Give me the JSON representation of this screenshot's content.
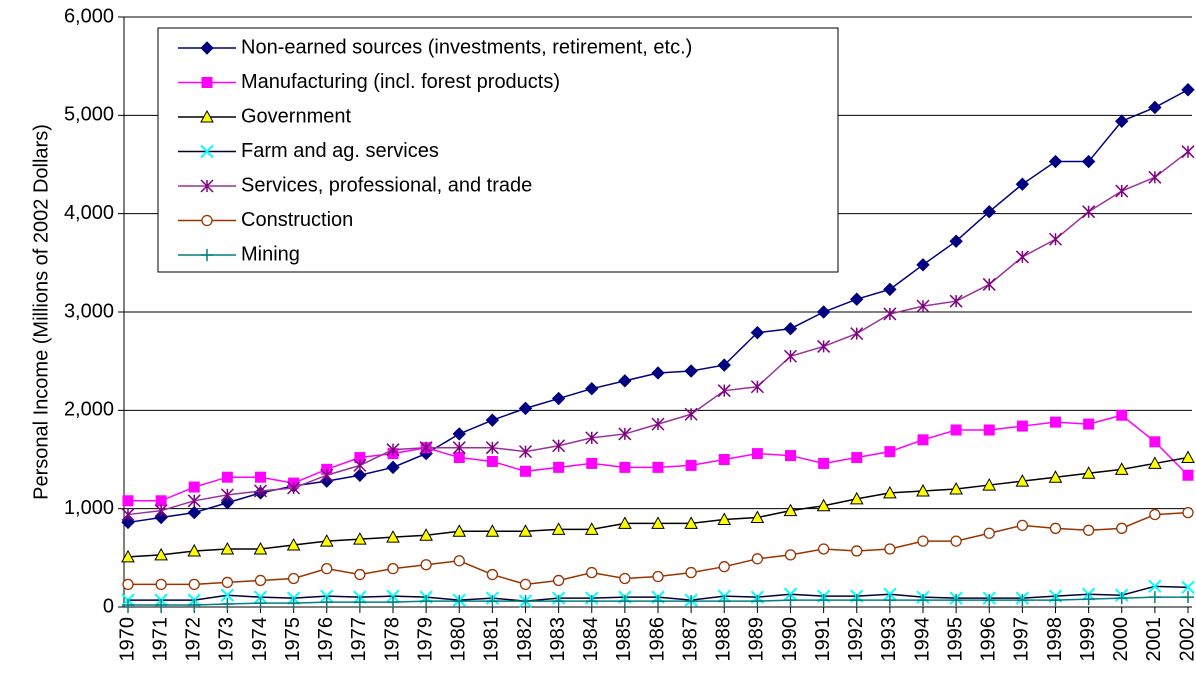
{
  "chart_data": {
    "type": "line",
    "y_label": "Personal Income (Millions of 2002 Dollars)",
    "categories": [
      "1970",
      "1971",
      "1972",
      "1973",
      "1974",
      "1975",
      "1976",
      "1977",
      "1978",
      "1979",
      "1980",
      "1981",
      "1982",
      "1983",
      "1984",
      "1985",
      "1986",
      "1987",
      "1988",
      "1989",
      "1990",
      "1991",
      "1992",
      "1993",
      "1994",
      "1995",
      "1996",
      "1997",
      "1998",
      "1999",
      "2000",
      "2001",
      "2002"
    ],
    "ylim": [
      0,
      6000
    ],
    "yticks": [
      0,
      {
        "value": 1000,
        "label": "1,000"
      },
      {
        "value": 2000,
        "label": "2,000"
      },
      {
        "value": 3000,
        "label": "3,000"
      },
      {
        "value": 4000,
        "label": "4,000"
      },
      {
        "value": 5000,
        "label": "5,000"
      },
      {
        "value": 6000,
        "label": "6,000"
      }
    ],
    "grid": true,
    "legend": "top-left",
    "series": [
      {
        "name": "Non-earned sources (investments, retirement, etc.)",
        "color": "#000080",
        "marker": "diamond",
        "marker_color": "#000080",
        "values": [
          860,
          910,
          960,
          1060,
          1160,
          1230,
          1280,
          1340,
          1420,
          1560,
          1760,
          1900,
          2020,
          2120,
          2220,
          2300,
          2380,
          2400,
          2460,
          2790,
          2830,
          3000,
          3130,
          3230,
          3480,
          3720,
          4020,
          4300,
          4530,
          4530,
          4940,
          5080,
          5260
        ]
      },
      {
        "name": "Manufacturing (incl. forest products)",
        "color": "#ff00ff",
        "marker": "square",
        "marker_color": "#ff00ff",
        "values": [
          1080,
          1080,
          1220,
          1320,
          1320,
          1260,
          1400,
          1520,
          1560,
          1620,
          1520,
          1480,
          1380,
          1420,
          1460,
          1420,
          1420,
          1440,
          1500,
          1560,
          1540,
          1460,
          1520,
          1580,
          1700,
          1800,
          1800,
          1840,
          1880,
          1860,
          1950,
          1680,
          1340
        ]
      },
      {
        "name": "Government",
        "color": "#000000",
        "marker": "triangle",
        "marker_color": "#ffff00",
        "values": [
          510,
          530,
          570,
          590,
          590,
          630,
          670,
          690,
          710,
          730,
          770,
          770,
          770,
          790,
          790,
          850,
          850,
          850,
          890,
          910,
          980,
          1030,
          1100,
          1160,
          1180,
          1200,
          1240,
          1280,
          1320,
          1360,
          1400,
          1460,
          1520
        ]
      },
      {
        "name": "Farm and ag. services",
        "color": "#000033",
        "marker": "x",
        "marker_color": "#00ffff",
        "values": [
          70,
          70,
          70,
          120,
          100,
          90,
          110,
          100,
          110,
          100,
          70,
          90,
          60,
          90,
          90,
          100,
          100,
          70,
          110,
          100,
          130,
          110,
          110,
          130,
          100,
          90,
          90,
          90,
          110,
          130,
          120,
          210,
          200
        ]
      },
      {
        "name": "Services, professional, and trade",
        "color": "#993399",
        "marker": "star",
        "marker_color": "#800080",
        "values": [
          940,
          980,
          1080,
          1140,
          1180,
          1210,
          1340,
          1440,
          1600,
          1620,
          1620,
          1620,
          1580,
          1640,
          1720,
          1760,
          1860,
          1960,
          2200,
          2240,
          2550,
          2650,
          2780,
          2980,
          3060,
          3110,
          3280,
          3560,
          3740,
          4020,
          4230,
          4370,
          4630
        ]
      },
      {
        "name": "Construction",
        "color": "#993300",
        "marker": "circle",
        "marker_color": "#993300",
        "values": [
          230,
          230,
          230,
          250,
          270,
          290,
          390,
          330,
          390,
          430,
          470,
          330,
          230,
          270,
          350,
          290,
          310,
          350,
          410,
          490,
          530,
          590,
          570,
          590,
          670,
          670,
          750,
          830,
          800,
          780,
          800,
          940,
          960
        ]
      },
      {
        "name": "Mining",
        "color": "#008080",
        "marker": "plus",
        "marker_color": "#008080",
        "values": [
          20,
          20,
          20,
          30,
          40,
          40,
          50,
          50,
          50,
          60,
          60,
          60,
          60,
          60,
          60,
          60,
          60,
          60,
          60,
          60,
          70,
          70,
          70,
          70,
          70,
          70,
          70,
          70,
          70,
          80,
          90,
          100,
          100
        ]
      }
    ]
  }
}
